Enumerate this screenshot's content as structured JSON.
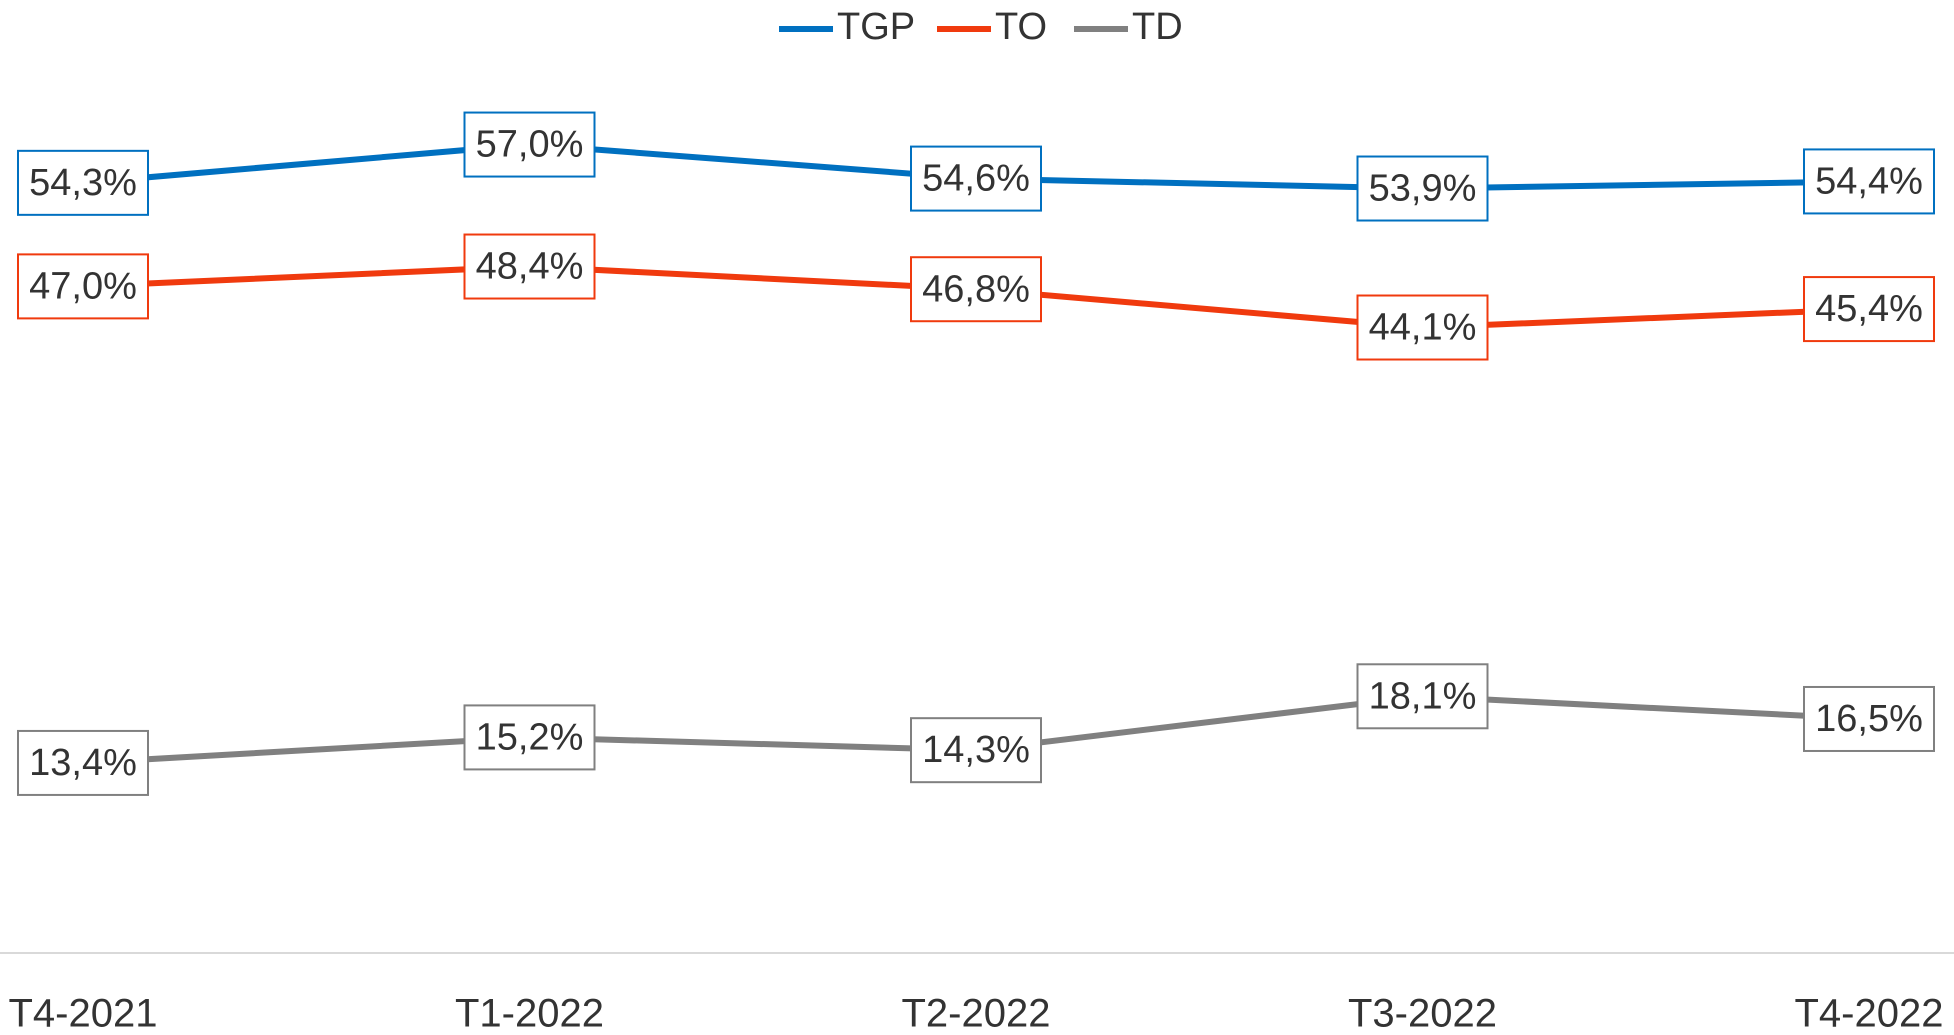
{
  "chart_data": {
    "type": "line",
    "categories": [
      "T4-2021",
      "T1-2022",
      "T2-2022",
      "T3-2022",
      "T4-2022"
    ],
    "series": [
      {
        "name": "TGP",
        "color": "#0070c0",
        "values": [
          54.3,
          57.0,
          54.6,
          53.9,
          54.4
        ],
        "value_labels": [
          "54,3%",
          "57,0%",
          "54,6%",
          "53,9%",
          "54,4%"
        ]
      },
      {
        "name": "TO",
        "color": "#f03a0e",
        "values": [
          47.0,
          48.4,
          46.8,
          44.1,
          45.4
        ],
        "value_labels": [
          "47,0%",
          "48,4%",
          "46,8%",
          "44,1%",
          "45,4%"
        ]
      },
      {
        "name": "TD",
        "color": "#808080",
        "values": [
          13.4,
          15.2,
          14.3,
          18.1,
          16.5
        ],
        "value_labels": [
          "13,4%",
          "15,2%",
          "14,3%",
          "18,1%",
          "16,5%"
        ]
      }
    ],
    "ylim": [
      0,
      60
    ],
    "legend": "top"
  }
}
